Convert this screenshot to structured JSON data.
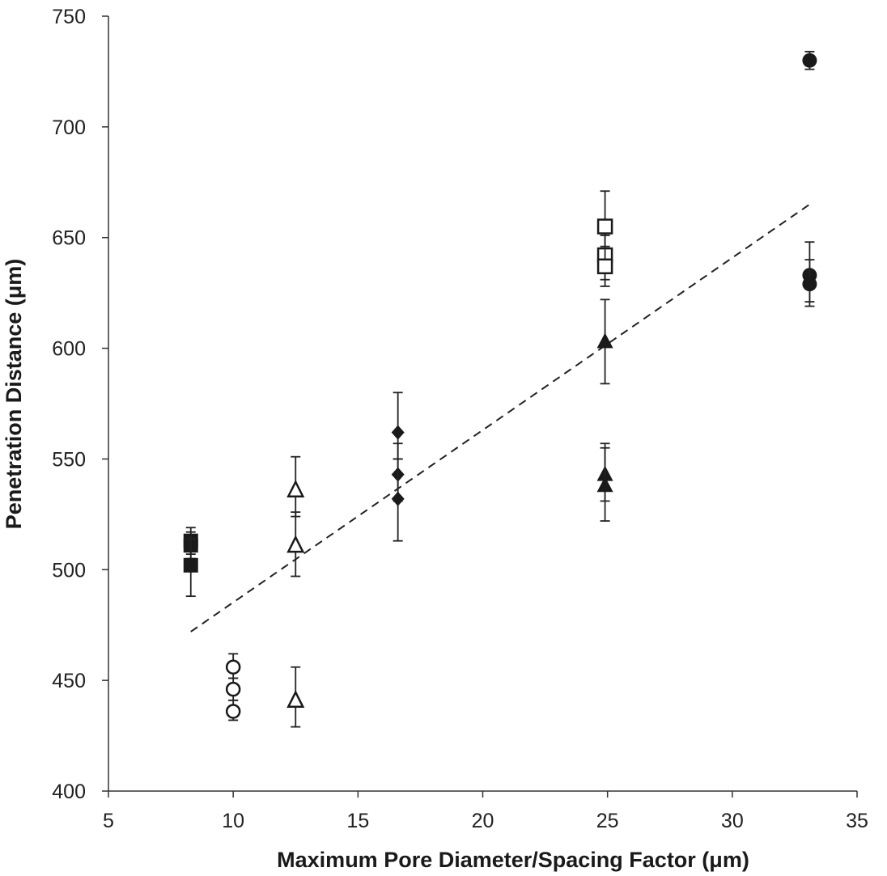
{
  "chart_data": {
    "type": "scatter",
    "title": "",
    "xlabel": "Maximum Pore Diameter/Spacing Factor (μm)",
    "ylabel": "Penetration Distance (μm)",
    "xlim": [
      5,
      35
    ],
    "ylim": [
      400,
      750
    ],
    "x_ticks": [
      "5",
      "10",
      "15",
      "20",
      "25",
      "30",
      "35"
    ],
    "y_ticks": [
      "400",
      "450",
      "500",
      "550",
      "600",
      "650",
      "700",
      "750"
    ],
    "grid": false,
    "legend": "none",
    "series": [
      {
        "marker": "filled-square",
        "color": "#1a1a1a",
        "points": [
          {
            "x": 8.3,
            "y": 513,
            "lo": 507,
            "hi": 519
          },
          {
            "x": 8.3,
            "y": 511,
            "lo": 505,
            "hi": 517
          },
          {
            "x": 8.3,
            "y": 502,
            "lo": 488,
            "hi": 514
          }
        ]
      },
      {
        "marker": "open-circle",
        "color": "#1a1a1a",
        "points": [
          {
            "x": 10.0,
            "y": 456,
            "lo": 451,
            "hi": 462
          },
          {
            "x": 10.0,
            "y": 446,
            "lo": 441,
            "hi": 451
          },
          {
            "x": 10.0,
            "y": 436,
            "lo": 432,
            "hi": 441
          }
        ]
      },
      {
        "marker": "open-triangle",
        "color": "#1a1a1a",
        "points": [
          {
            "x": 12.5,
            "y": 536,
            "lo": 524,
            "hi": 551
          },
          {
            "x": 12.5,
            "y": 511,
            "lo": 497,
            "hi": 526
          },
          {
            "x": 12.5,
            "y": 441,
            "lo": 429,
            "hi": 456
          }
        ]
      },
      {
        "marker": "filled-diamond",
        "color": "#1a1a1a",
        "points": [
          {
            "x": 16.6,
            "y": 562,
            "lo": 550,
            "hi": 580
          },
          {
            "x": 16.6,
            "y": 543,
            "lo": 531,
            "hi": 557
          },
          {
            "x": 16.6,
            "y": 532,
            "lo": 513,
            "hi": 550
          }
        ]
      },
      {
        "marker": "open-square",
        "color": "#1a1a1a",
        "points": [
          {
            "x": 24.9,
            "y": 655,
            "lo": 642,
            "hi": 671
          },
          {
            "x": 24.9,
            "y": 642,
            "lo": 631,
            "hi": 651
          },
          {
            "x": 24.9,
            "y": 637,
            "lo": 628,
            "hi": 646
          }
        ]
      },
      {
        "marker": "filled-triangle",
        "color": "#1a1a1a",
        "points": [
          {
            "x": 24.9,
            "y": 603,
            "lo": 584,
            "hi": 622
          },
          {
            "x": 24.9,
            "y": 543,
            "lo": 531,
            "hi": 557
          },
          {
            "x": 24.9,
            "y": 538,
            "lo": 522,
            "hi": 555
          }
        ]
      },
      {
        "marker": "filled-circle",
        "color": "#1a1a1a",
        "points": [
          {
            "x": 33.1,
            "y": 730,
            "lo": 726,
            "hi": 734
          },
          {
            "x": 33.1,
            "y": 633,
            "lo": 621,
            "hi": 648
          },
          {
            "x": 33.1,
            "y": 629,
            "lo": 619,
            "hi": 640
          }
        ]
      }
    ],
    "trendline": {
      "style": "dashed",
      "x": [
        8.3,
        33.1
      ],
      "y": [
        472,
        665
      ]
    }
  }
}
